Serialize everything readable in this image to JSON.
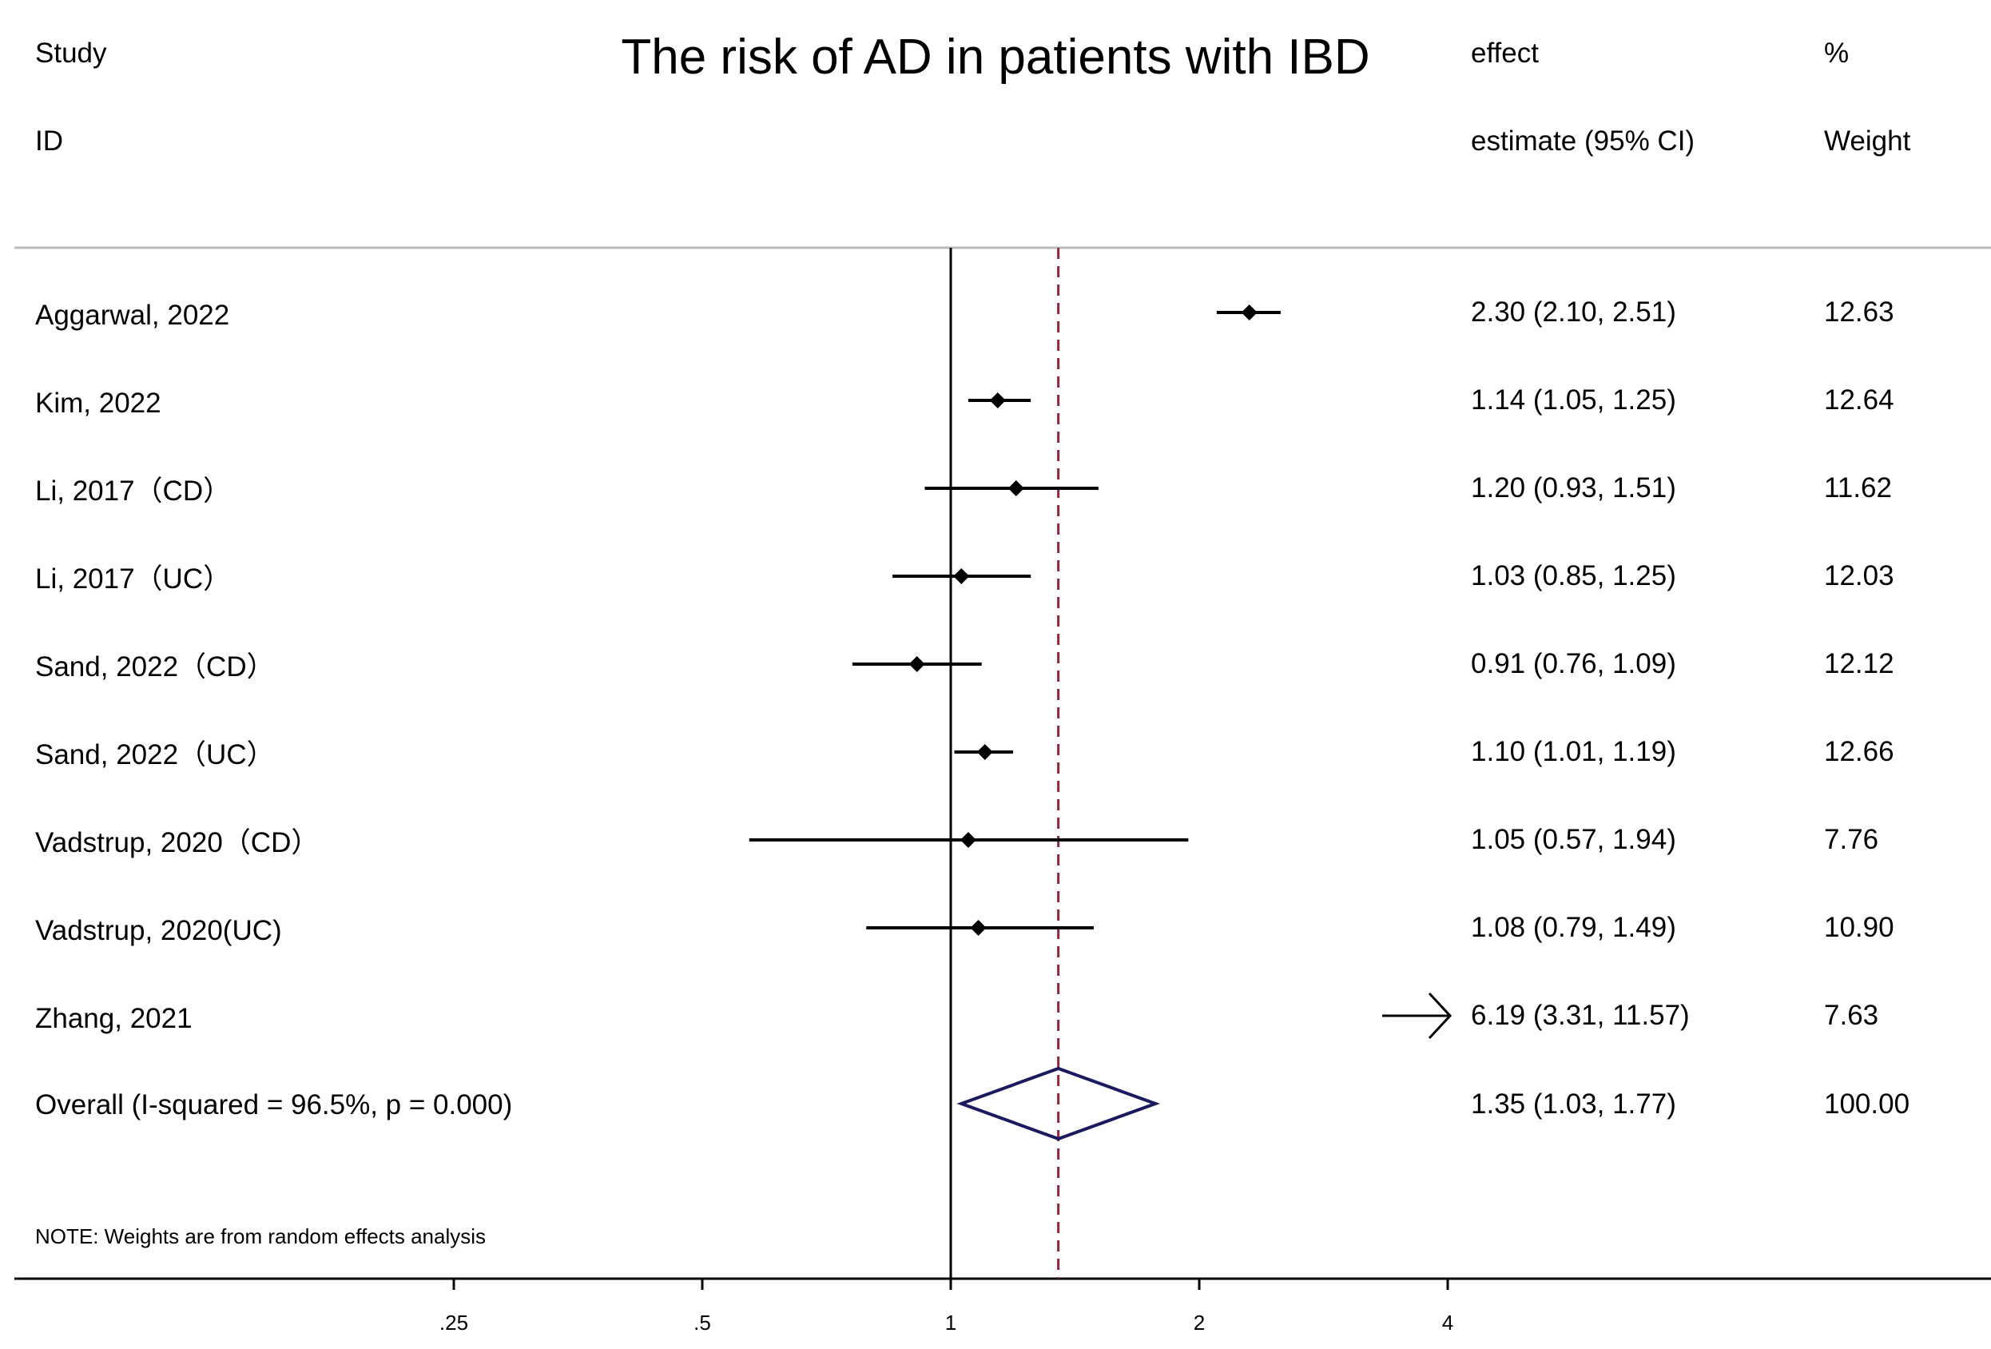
{
  "chart_data": {
    "type": "forest",
    "title": "The risk of AD in patients with IBD",
    "columns": {
      "study_header": [
        "Study",
        "ID"
      ],
      "effect_header": [
        "effect",
        "estimate (95% CI)"
      ],
      "weight_header": [
        "%",
        "Weight"
      ]
    },
    "x_scale": "log",
    "null_line": 1,
    "x_ticks": [
      {
        "value": 0.25,
        "label": ".25"
      },
      {
        "value": 0.5,
        "label": ".5"
      },
      {
        "value": 1,
        "label": "1"
      },
      {
        "value": 2,
        "label": "2"
      },
      {
        "value": 4,
        "label": "4"
      }
    ],
    "studies": [
      {
        "label": "Aggarwal, 2022",
        "es": 2.3,
        "lo": 2.1,
        "hi": 2.51,
        "text": "2.30 (2.10, 2.51)",
        "weight": "12.63"
      },
      {
        "label": "Kim, 2022",
        "es": 1.14,
        "lo": 1.05,
        "hi": 1.25,
        "text": "1.14 (1.05, 1.25)",
        "weight": "12.64"
      },
      {
        "label": "Li, 2017（CD）",
        "es": 1.2,
        "lo": 0.93,
        "hi": 1.51,
        "text": "1.20 (0.93, 1.51)",
        "weight": "11.62"
      },
      {
        "label": "Li, 2017（UC）",
        "es": 1.03,
        "lo": 0.85,
        "hi": 1.25,
        "text": "1.03 (0.85, 1.25)",
        "weight": "12.03"
      },
      {
        "label": "Sand, 2022（CD）",
        "es": 0.91,
        "lo": 0.76,
        "hi": 1.09,
        "text": "0.91 (0.76, 1.09)",
        "weight": "12.12"
      },
      {
        "label": "Sand, 2022（UC）",
        "es": 1.1,
        "lo": 1.01,
        "hi": 1.19,
        "text": "1.10 (1.01, 1.19)",
        "weight": "12.66"
      },
      {
        "label": "Vadstrup, 2020（CD）",
        "es": 1.05,
        "lo": 0.57,
        "hi": 1.94,
        "text": "1.05 (0.57, 1.94)",
        "weight": "7.76"
      },
      {
        "label": "Vadstrup, 2020(UC)",
        "es": 1.08,
        "lo": 0.79,
        "hi": 1.49,
        "text": "1.08 (0.79, 1.49)",
        "weight": "10.90"
      },
      {
        "label": "Zhang, 2021",
        "es": 6.19,
        "lo": 3.31,
        "hi": 11.57,
        "text": "6.19 (3.31, 11.57)",
        "weight": "7.63"
      }
    ],
    "overall": {
      "label": "Overall  (I-squared = 96.5%, p = 0.000)",
      "es": 1.35,
      "lo": 1.03,
      "hi": 1.77,
      "text": "1.35 (1.03, 1.77)",
      "weight": "100.00"
    },
    "note": "NOTE: Weights are from random effects analysis",
    "colors": {
      "marker": "#000000",
      "diamond_stroke": "#1a1a5e",
      "overall_line": "#8b2a3a",
      "rule": "#bbbbbb",
      "axis": "#000000"
    }
  }
}
